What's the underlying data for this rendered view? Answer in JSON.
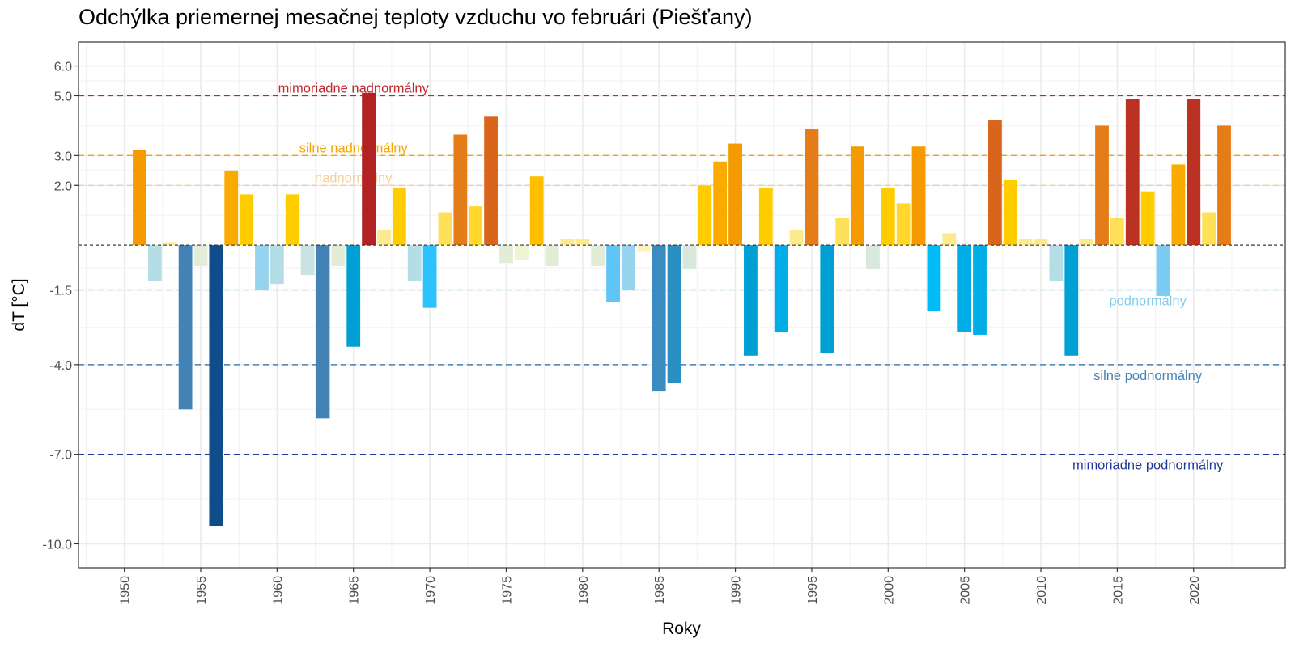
{
  "chart_data": {
    "type": "bar",
    "title": "Odchýlka priemernej mesačnej teploty vzduchu vo februári (Piešťany)",
    "xlabel": "Roky",
    "ylabel": "dT [°C]",
    "xlim": [
      1947,
      2026
    ],
    "ylim": [
      -10.8,
      6.8
    ],
    "grid": true,
    "x_ticks": [
      1950,
      1955,
      1960,
      1965,
      1970,
      1975,
      1980,
      1985,
      1990,
      1995,
      2000,
      2005,
      2010,
      2015,
      2020
    ],
    "y_ticks": [
      {
        "value": 6.0,
        "label": "6.0"
      },
      {
        "value": 5.0,
        "label": "5.0"
      },
      {
        "value": 3.0,
        "label": "3.0"
      },
      {
        "value": 2.0,
        "label": "2.0"
      },
      {
        "value": -1.5,
        "label": "-1.5"
      },
      {
        "value": -4.0,
        "label": "-4.0"
      },
      {
        "value": -7.0,
        "label": "-7.0"
      },
      {
        "value": -10.0,
        "label": "-10.0"
      }
    ],
    "thresholds": [
      {
        "value": 5.0,
        "label": "mimoriadne nadnormálny",
        "color": "#c0272d",
        "label_year": 1965,
        "side": "above"
      },
      {
        "value": 3.0,
        "label": "silne nadnormálny",
        "color": "#f5a300",
        "label_year": 1965,
        "side": "above"
      },
      {
        "value": 2.0,
        "label": "nadnormálny",
        "color": "#f2cfa0",
        "label_year": 1965,
        "side": "above"
      },
      {
        "value": 0.0,
        "label": "",
        "color": "#333333",
        "label_year": null,
        "side": "none"
      },
      {
        "value": -1.5,
        "label": "podnormálny",
        "color": "#87ceeb",
        "label_year": 2017,
        "side": "below"
      },
      {
        "value": -4.0,
        "label": "silne podnormálny",
        "color": "#4682b4",
        "label_year": 2017,
        "side": "below"
      },
      {
        "value": -7.0,
        "label": "mimoriadne podnormálny",
        "color": "#1f3a93",
        "label_year": 2017,
        "side": "below"
      }
    ],
    "series": [
      {
        "name": "dT",
        "x": [
          1951,
          1952,
          1953,
          1954,
          1955,
          1956,
          1957,
          1958,
          1959,
          1960,
          1961,
          1962,
          1963,
          1964,
          1965,
          1966,
          1967,
          1968,
          1969,
          1970,
          1971,
          1972,
          1973,
          1974,
          1975,
          1976,
          1977,
          1978,
          1979,
          1980,
          1981,
          1982,
          1983,
          1984,
          1985,
          1986,
          1987,
          1988,
          1989,
          1990,
          1991,
          1992,
          1993,
          1994,
          1995,
          1996,
          1997,
          1998,
          1999,
          2000,
          2001,
          2002,
          2003,
          2004,
          2005,
          2006,
          2007,
          2008,
          2009,
          2010,
          2011,
          2012,
          2013,
          2014,
          2015,
          2016,
          2017,
          2018,
          2019,
          2020,
          2021,
          2022
        ],
        "values": [
          3.2,
          -1.2,
          0.1,
          -5.5,
          -0.7,
          -9.4,
          2.5,
          1.7,
          -1.5,
          -1.3,
          1.7,
          -1.0,
          -5.8,
          -0.7,
          -3.4,
          5.1,
          0.5,
          1.9,
          -1.2,
          -2.1,
          1.1,
          3.7,
          1.3,
          4.3,
          -0.6,
          -0.5,
          2.3,
          -0.7,
          0.2,
          0.2,
          -0.7,
          -1.9,
          -1.5,
          -0.2,
          -4.9,
          -4.6,
          -0.8,
          2.0,
          2.8,
          3.4,
          -3.7,
          1.9,
          -2.9,
          0.5,
          3.9,
          -3.6,
          0.9,
          3.3,
          -0.8,
          1.9,
          1.4,
          3.3,
          -2.2,
          0.4,
          -2.9,
          -3.0,
          4.2,
          2.2,
          0.2,
          0.2,
          -1.2,
          -3.7,
          0.2,
          4.0,
          0.9,
          4.9,
          1.8,
          -1.7,
          2.7,
          4.9,
          1.1,
          4.0
        ]
      }
    ]
  }
}
